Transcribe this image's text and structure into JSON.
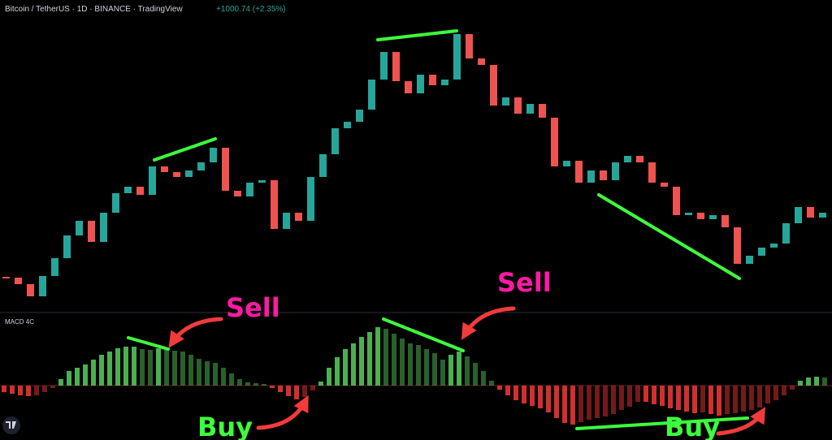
{
  "header": {
    "symbol": "Bitcoin / TetherUS · 1D · BINANCE · TradingView",
    "change": "+1000.74 (+2.35%)"
  },
  "annotations": {
    "sell": [
      "Sell",
      "Sell"
    ],
    "buy": [
      "Buy",
      "Buy"
    ]
  },
  "chart_data": [
    {
      "type": "candlestick",
      "up_color": "#26a69a",
      "down_color": "#ef5350",
      "ylim": [
        0,
        385
      ],
      "values": [
        43,
        35,
        20,
        45,
        67,
        95,
        113,
        87,
        123,
        147,
        155,
        145,
        180,
        173,
        167,
        175,
        185,
        203,
        150,
        143,
        160,
        163,
        103,
        123,
        113,
        167,
        195,
        227,
        235,
        250,
        287,
        321,
        285,
        270,
        293,
        280,
        287,
        343,
        313,
        305,
        255,
        265,
        245,
        257,
        240,
        180,
        187,
        160,
        175,
        163,
        185,
        193,
        185,
        160,
        155,
        120,
        123,
        115,
        120,
        105,
        60,
        70,
        80,
        85,
        110,
        130,
        117,
        123
      ]
    },
    {
      "type": "bar",
      "title": "MACD 4C",
      "positive_color": "#4caf50",
      "negative_color": "#d32f2f",
      "ylim": [
        -67,
        90
      ],
      "values": [
        -8,
        -10,
        -12,
        -13,
        -12,
        -8,
        -3,
        8,
        18,
        22,
        26,
        32,
        38,
        42,
        46,
        48,
        48,
        45,
        44,
        46,
        45,
        43,
        42,
        38,
        33,
        30,
        28,
        22,
        15,
        8,
        4,
        3,
        2,
        -3,
        -8,
        -13,
        -17,
        -14,
        -6,
        5,
        22,
        35,
        45,
        52,
        60,
        66,
        72,
        70,
        64,
        58,
        52,
        50,
        45,
        40,
        32,
        38,
        42,
        36,
        28,
        18,
        6,
        -5,
        -12,
        -18,
        -22,
        -25,
        -28,
        -33,
        -40,
        -46,
        -48,
        -45,
        -42,
        -40,
        -38,
        -35,
        -30,
        -26,
        -20,
        -20,
        -23,
        -25,
        -28,
        -30,
        -32,
        -34,
        -33,
        -35,
        -37,
        -35,
        -34,
        -32,
        -30,
        -27,
        -22,
        -18,
        -12,
        -5,
        6,
        10,
        11,
        10
      ]
    }
  ]
}
